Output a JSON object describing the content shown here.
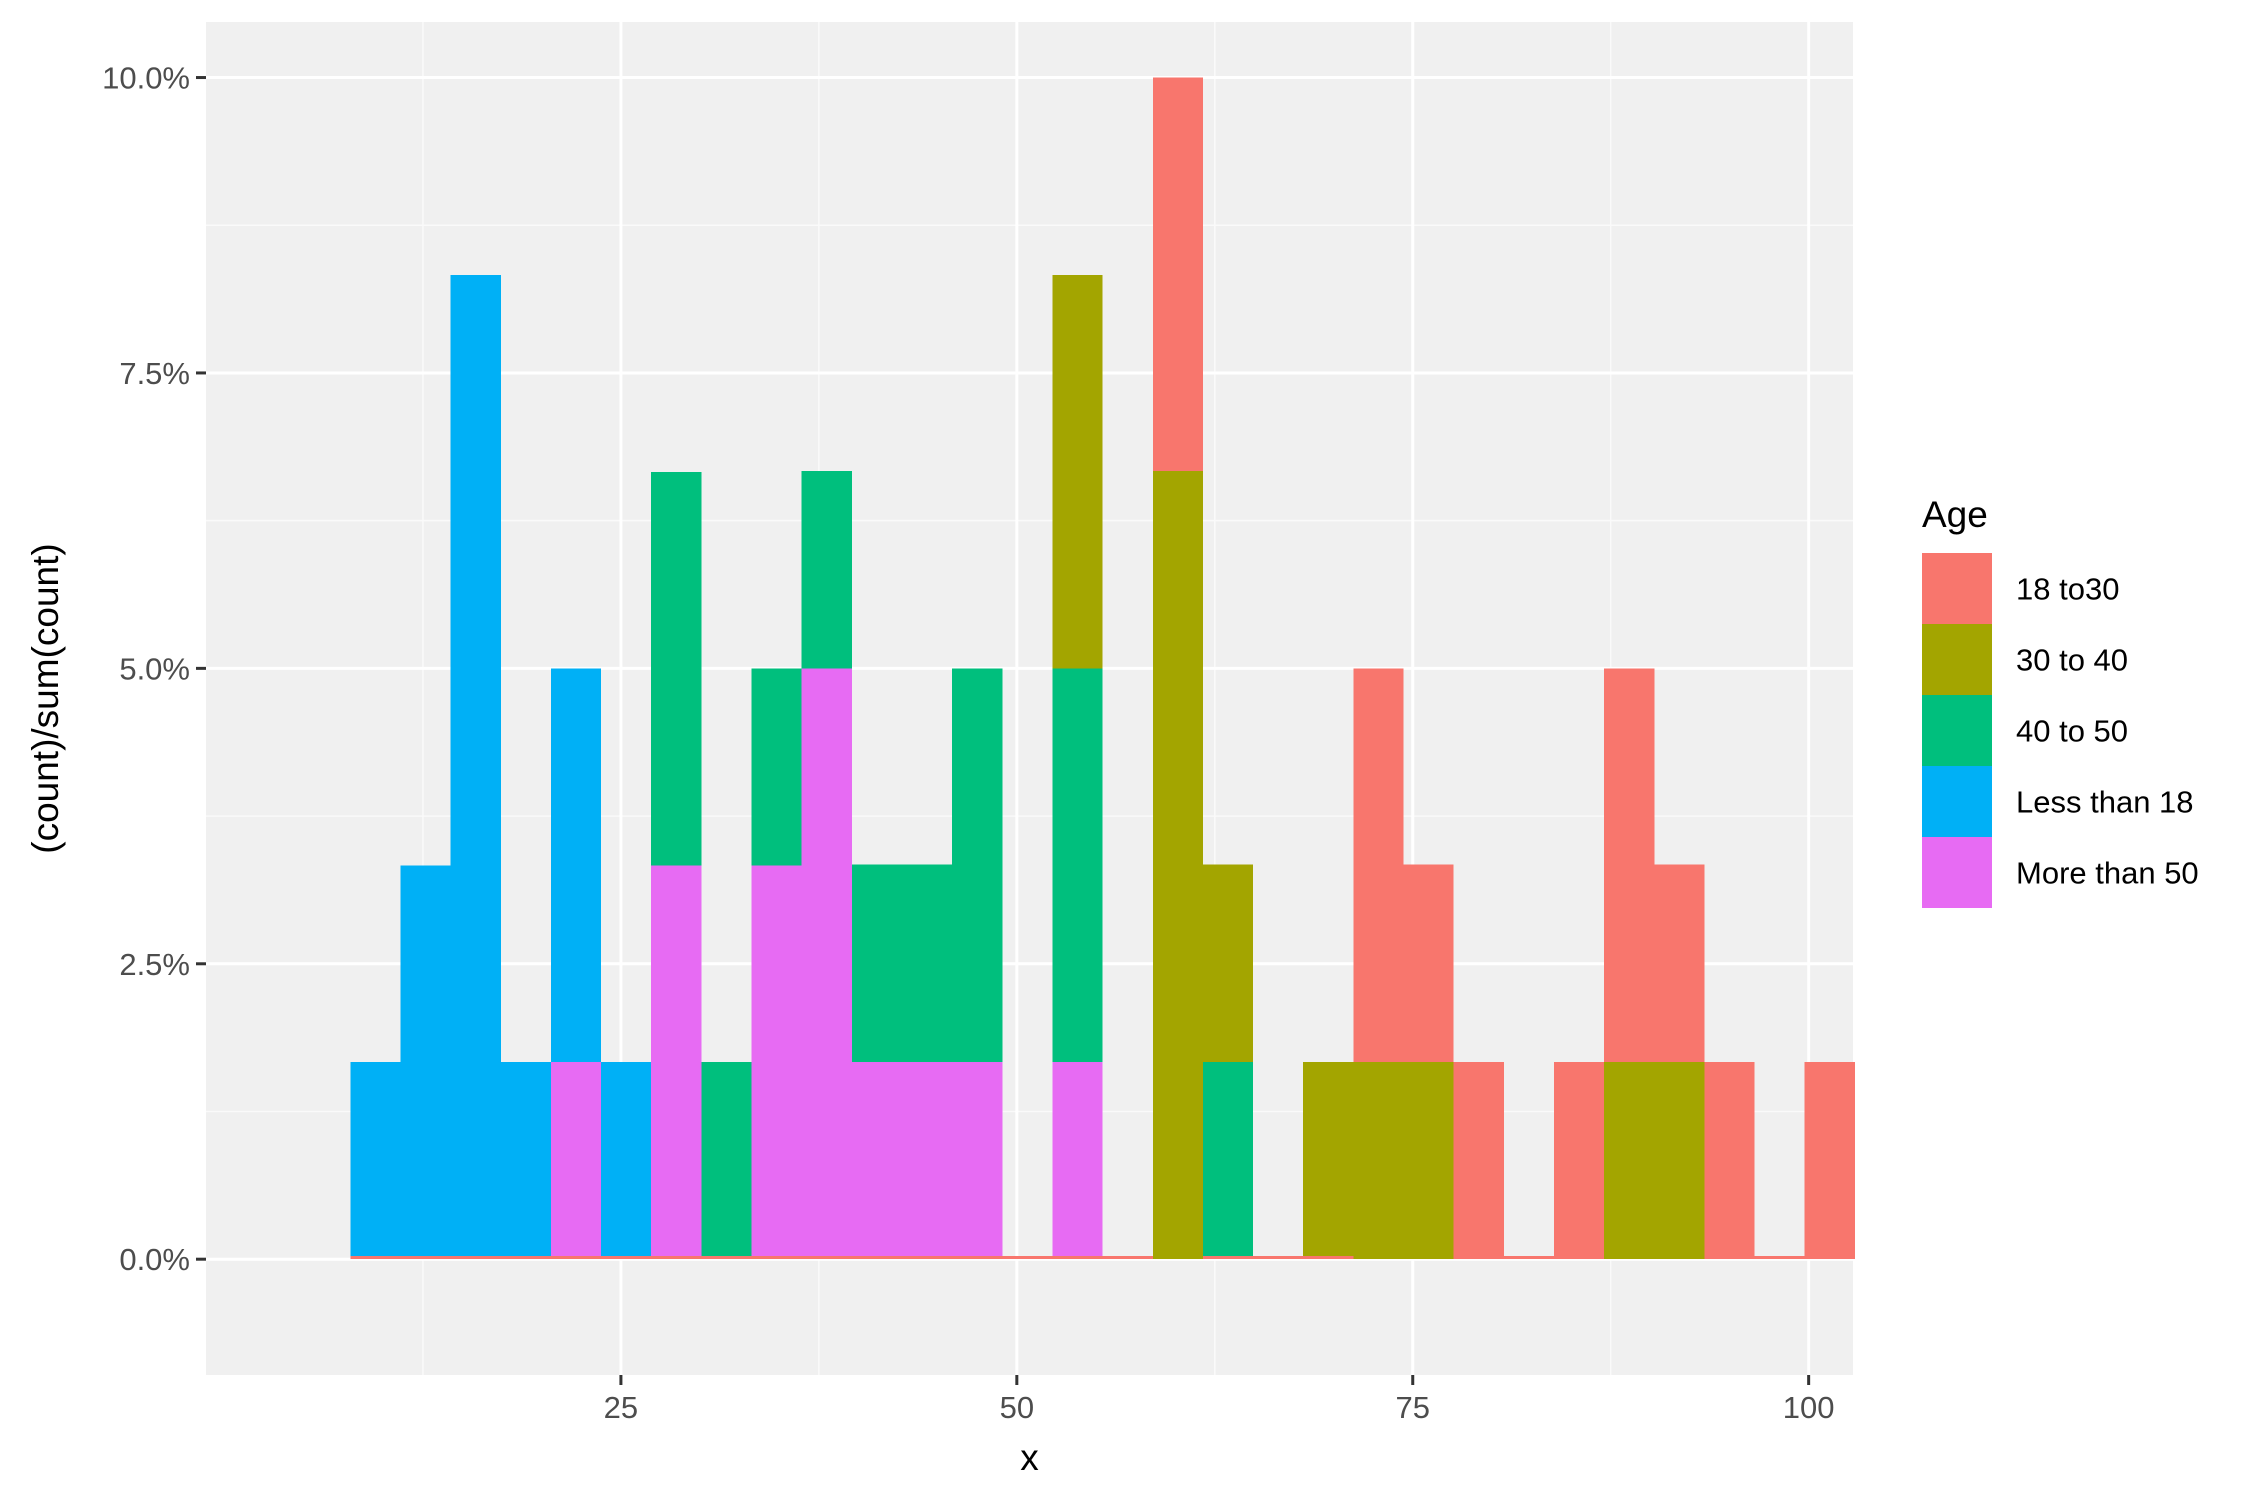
{
  "chart_data": {
    "type": "bar",
    "stacked": true,
    "xlabel": "x",
    "ylabel": "(count)/sum(count)",
    "xlim": [
      -1.2,
      102.8
    ],
    "ylim": [
      -0.0098,
      0.1047
    ],
    "x_ticks": [
      25,
      50,
      75,
      100
    ],
    "x_tick_labels": [
      "25",
      "50",
      "75",
      "100"
    ],
    "y_ticks": [
      0,
      0.025,
      0.05,
      0.075,
      0.1
    ],
    "y_tick_labels": [
      "0.0%",
      "2.5%",
      "5.0%",
      "7.5%",
      "10.0%"
    ],
    "grid": true,
    "legend": {
      "title": "Age",
      "placement": "right",
      "entries": [
        {
          "label": "18 to30",
          "color": "#F8766D"
        },
        {
          "label": "30 to 40",
          "color": "#A3A500"
        },
        {
          "label": "40 to 50",
          "color": "#00BF7D"
        },
        {
          "label": "Less than 18",
          "color": "#00B0F6"
        },
        {
          "label": "More than 50",
          "color": "#E76BF3"
        }
      ]
    },
    "bin_width": 3.17,
    "bin_centers": [
      9.5,
      12.67,
      15.83,
      19.0,
      22.17,
      25.33,
      28.5,
      31.67,
      34.83,
      38.0,
      41.17,
      44.33,
      47.5,
      50.67,
      53.83,
      57.0,
      60.17,
      63.33,
      66.5,
      69.67,
      72.83,
      76.0,
      79.17,
      82.33,
      85.5,
      88.67,
      91.83,
      95.0,
      98.17,
      101.33
    ],
    "series": [
      {
        "name": "18 to30",
        "color": "#F8766D",
        "values": [
          0,
          0,
          0,
          0,
          0,
          0,
          0,
          0,
          0,
          0,
          0,
          0,
          0,
          0,
          0,
          0,
          0.0333,
          0,
          0,
          0,
          0.0333,
          0.0167,
          0.0167,
          0,
          0.0167,
          0.0333,
          0.0167,
          0.0167,
          0,
          0.0167
        ]
      },
      {
        "name": "30 to 40",
        "color": "#A3A500",
        "values": [
          0,
          0,
          0,
          0,
          0,
          0,
          0,
          0,
          0,
          0,
          0,
          0,
          0,
          0,
          0.0333,
          0,
          0.0667,
          0.0167,
          0,
          0.0167,
          0.0167,
          0.0167,
          0,
          0,
          0,
          0.0167,
          0.0167,
          0,
          0,
          0
        ]
      },
      {
        "name": "40 to 50",
        "color": "#00BF7D",
        "values": [
          0,
          0,
          0,
          0,
          0,
          0,
          0.0333,
          0.0167,
          0.0167,
          0.0167,
          0.0167,
          0.0167,
          0.0333,
          0,
          0.0333,
          0,
          0,
          0.0167,
          0,
          0,
          0,
          0,
          0,
          0,
          0,
          0,
          0,
          0,
          0,
          0
        ]
      },
      {
        "name": "Less than 18",
        "color": "#00B0F6",
        "values": [
          0.0167,
          0.0333,
          0.0833,
          0.0167,
          0.0333,
          0.0167,
          0,
          0,
          0,
          0,
          0,
          0,
          0,
          0,
          0,
          0,
          0,
          0,
          0,
          0,
          0,
          0,
          0,
          0,
          0,
          0,
          0,
          0,
          0,
          0
        ]
      },
      {
        "name": "More than 50",
        "color": "#E76BF3",
        "values": [
          0,
          0,
          0,
          0,
          0.0167,
          0,
          0.0333,
          0,
          0.0333,
          0.05,
          0.0167,
          0.0167,
          0.0167,
          0,
          0.0167,
          0,
          0,
          0,
          0,
          0,
          0,
          0,
          0,
          0,
          0,
          0,
          0,
          0,
          0,
          0
        ]
      }
    ]
  },
  "colors": {
    "panel_background": "#F0F0F0",
    "grid_major": "#FFFFFF",
    "grid_minor": "#FAFAFA"
  }
}
